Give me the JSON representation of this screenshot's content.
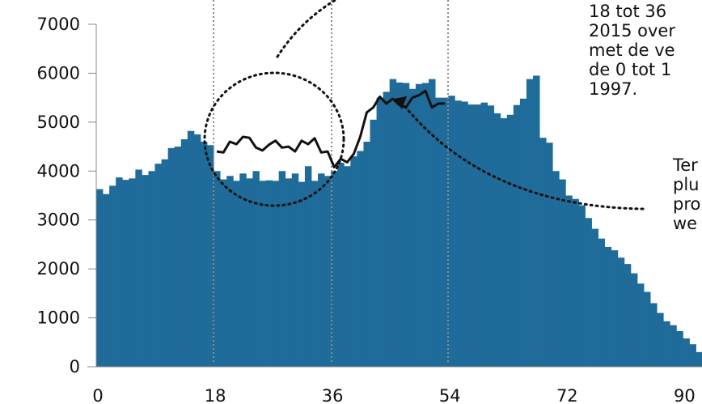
{
  "chart_data": {
    "type": "bar",
    "title": "",
    "xlabel": "",
    "ylabel": "",
    "x_ticks": [
      0,
      18,
      36,
      54,
      72,
      90
    ],
    "y_ticks": [
      0,
      1000,
      2000,
      3000,
      4000,
      5000,
      6000,
      7000
    ],
    "xlim": [
      0,
      94
    ],
    "ylim": [
      0,
      7000
    ],
    "bar_color": "#1f6b99",
    "categories": [
      0,
      1,
      2,
      3,
      4,
      5,
      6,
      7,
      8,
      9,
      10,
      11,
      12,
      13,
      14,
      15,
      16,
      17,
      18,
      19,
      20,
      21,
      22,
      23,
      24,
      25,
      26,
      27,
      28,
      29,
      30,
      31,
      32,
      33,
      34,
      35,
      36,
      37,
      38,
      39,
      40,
      41,
      42,
      43,
      44,
      45,
      46,
      47,
      48,
      49,
      50,
      51,
      52,
      53,
      54,
      55,
      56,
      57,
      58,
      59,
      60,
      61,
      62,
      63,
      64,
      65,
      66,
      67,
      68,
      69,
      70,
      71,
      72,
      73,
      74,
      75,
      76,
      77,
      78,
      79,
      80,
      81,
      82,
      83,
      84,
      85,
      86,
      87,
      88,
      89,
      90,
      91,
      92,
      93
    ],
    "values": [
      3630,
      3530,
      3700,
      3870,
      3820,
      3850,
      4030,
      3920,
      4000,
      4150,
      4240,
      4470,
      4500,
      4650,
      4820,
      4750,
      4600,
      4530,
      4000,
      3830,
      3900,
      3800,
      3950,
      3850,
      4000,
      3800,
      3810,
      3800,
      4000,
      3850,
      3950,
      3780,
      4100,
      3800,
      3950,
      3900,
      4000,
      4170,
      4100,
      4300,
      4410,
      4600,
      5050,
      5500,
      5620,
      5880,
      5810,
      5800,
      5680,
      5780,
      5800,
      5880,
      5500,
      5500,
      5540,
      5440,
      5420,
      5360,
      5360,
      5400,
      5340,
      5180,
      5080,
      5150,
      5350,
      5480,
      5880,
      5950,
      4680,
      4580,
      4000,
      3830,
      3500,
      3430,
      3300,
      3040,
      2820,
      2620,
      2450,
      2380,
      2230,
      2100,
      1910,
      1700,
      1530,
      1300,
      1100,
      930,
      850,
      730,
      580,
      460,
      300,
      200
    ],
    "series": [
      {
        "name": "",
        "color": "#111111",
        "x": [
          18,
          19,
          20,
          21,
          22,
          23,
          24,
          25,
          26,
          27,
          28,
          29,
          30,
          31,
          32,
          33,
          34,
          35,
          36,
          37,
          38,
          39,
          40,
          41,
          42,
          43,
          44,
          45,
          46,
          47,
          48,
          49,
          50,
          51,
          52,
          53
        ],
        "y": [
          4400,
          4380,
          4600,
          4550,
          4700,
          4680,
          4480,
          4420,
          4540,
          4620,
          4480,
          4500,
          4400,
          4620,
          4550,
          4670,
          4380,
          4400,
          4080,
          4250,
          4180,
          4350,
          4700,
          5200,
          5300,
          5520,
          5380,
          5480,
          5350,
          5300,
          5500,
          5550,
          5640,
          5300,
          5380,
          5380
        ]
      }
    ],
    "annotations": [
      "18 tot 36\n2015 over\nmet de ve\nde 0 tot 1\n1997.",
      "Ter\nplu\npro\nwe"
    ]
  }
}
